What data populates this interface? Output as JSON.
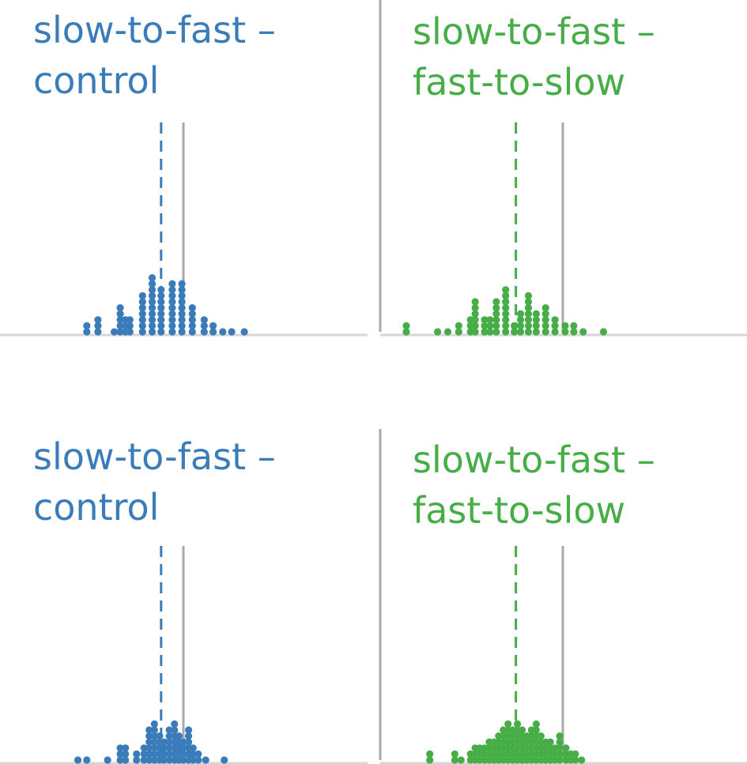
{
  "colors": {
    "blue": "#3a7cb9",
    "green": "#47ad47",
    "reference_line": "#a8a8a8",
    "axis": "#d6d6d6"
  },
  "chart_data": [
    {
      "type": "dotplot",
      "title_lines": [
        "slow-to-fast –",
        "control"
      ],
      "color": "blue",
      "reference_value": 0,
      "mean_value": -3,
      "columns": [
        {
          "x": -13,
          "count": 2
        },
        {
          "x": -11.5,
          "count": 3
        },
        {
          "x": -9.3,
          "count": 1
        },
        {
          "x": -8.5,
          "count": 5
        },
        {
          "x": -7.8,
          "count": 3
        },
        {
          "x": -7.2,
          "count": 3
        },
        {
          "x": -5.5,
          "count": 7
        },
        {
          "x": -4.2,
          "count": 10
        },
        {
          "x": -3,
          "count": 8
        },
        {
          "x": -1.5,
          "count": 9
        },
        {
          "x": -0.2,
          "count": 9
        },
        {
          "x": 1.2,
          "count": 5
        },
        {
          "x": 2.8,
          "count": 3
        },
        {
          "x": 4,
          "count": 2
        },
        {
          "x": 5.3,
          "count": 1
        },
        {
          "x": 6.5,
          "count": 1
        },
        {
          "x": 8.2,
          "count": 1
        }
      ]
    },
    {
      "type": "dotplot",
      "title_lines": [
        "slow-to-fast –",
        "fast-to-slow"
      ],
      "color": "green",
      "reference_value": 0,
      "mean_value": -6,
      "columns": [
        {
          "x": -20,
          "count": 2
        },
        {
          "x": -16,
          "count": 1
        },
        {
          "x": -14.7,
          "count": 1
        },
        {
          "x": -13.3,
          "count": 2
        },
        {
          "x": -11.8,
          "count": 3
        },
        {
          "x": -11.2,
          "count": 6
        },
        {
          "x": -10,
          "count": 3
        },
        {
          "x": -9.3,
          "count": 3
        },
        {
          "x": -8.5,
          "count": 6
        },
        {
          "x": -7.3,
          "count": 8
        },
        {
          "x": -6.2,
          "count": 2
        },
        {
          "x": -5.4,
          "count": 4
        },
        {
          "x": -4.4,
          "count": 7
        },
        {
          "x": -3.4,
          "count": 4
        },
        {
          "x": -2.2,
          "count": 5
        },
        {
          "x": -1,
          "count": 3
        },
        {
          "x": 0.3,
          "count": 2
        },
        {
          "x": 1.4,
          "count": 2
        },
        {
          "x": 2.6,
          "count": 1
        },
        {
          "x": 5.2,
          "count": 1
        }
      ]
    },
    {
      "type": "dotplot",
      "title_lines": [
        "slow-to-fast –",
        "control"
      ],
      "color": "blue",
      "reference_value": 0,
      "mean_value": -3,
      "columns": [
        {
          "x": -14.2,
          "count": 1
        },
        {
          "x": -13,
          "count": 1
        },
        {
          "x": -10.2,
          "count": 1
        },
        {
          "x": -8.5,
          "count": 3
        },
        {
          "x": -7.8,
          "count": 3
        },
        {
          "x": -6.3,
          "count": 2
        },
        {
          "x": -5.3,
          "count": 3
        },
        {
          "x": -4.6,
          "count": 6
        },
        {
          "x": -3.9,
          "count": 7
        },
        {
          "x": -3.2,
          "count": 5
        },
        {
          "x": -2.6,
          "count": 4
        },
        {
          "x": -1.9,
          "count": 6
        },
        {
          "x": -1.2,
          "count": 7
        },
        {
          "x": -0.6,
          "count": 5
        },
        {
          "x": 0,
          "count": 4
        },
        {
          "x": 0.7,
          "count": 6
        },
        {
          "x": 1.3,
          "count": 3
        },
        {
          "x": 2,
          "count": 2
        },
        {
          "x": 3,
          "count": 1
        },
        {
          "x": 5.5,
          "count": 1
        }
      ]
    },
    {
      "type": "dotplot",
      "title_lines": [
        "slow-to-fast –",
        "fast-to-slow"
      ],
      "color": "green",
      "reference_value": 0,
      "mean_value": -6,
      "columns": [
        {
          "x": -17,
          "count": 2
        },
        {
          "x": -13.8,
          "count": 2
        },
        {
          "x": -13,
          "count": 1
        },
        {
          "x": -11.8,
          "count": 2
        },
        {
          "x": -11.2,
          "count": 3
        },
        {
          "x": -10.6,
          "count": 3
        },
        {
          "x": -10,
          "count": 3
        },
        {
          "x": -9.4,
          "count": 4
        },
        {
          "x": -8.8,
          "count": 4
        },
        {
          "x": -8.2,
          "count": 5
        },
        {
          "x": -7.6,
          "count": 6
        },
        {
          "x": -7,
          "count": 7
        },
        {
          "x": -6.4,
          "count": 6
        },
        {
          "x": -5.8,
          "count": 7
        },
        {
          "x": -5.2,
          "count": 6
        },
        {
          "x": -4.6,
          "count": 5
        },
        {
          "x": -4,
          "count": 6
        },
        {
          "x": -3.4,
          "count": 7
        },
        {
          "x": -2.8,
          "count": 5
        },
        {
          "x": -2.2,
          "count": 4
        },
        {
          "x": -1.6,
          "count": 4
        },
        {
          "x": -1,
          "count": 3
        },
        {
          "x": -0.4,
          "count": 5
        },
        {
          "x": 0.4,
          "count": 3
        },
        {
          "x": 1,
          "count": 2
        },
        {
          "x": 1.6,
          "count": 2
        },
        {
          "x": 2.4,
          "count": 1
        }
      ]
    }
  ]
}
